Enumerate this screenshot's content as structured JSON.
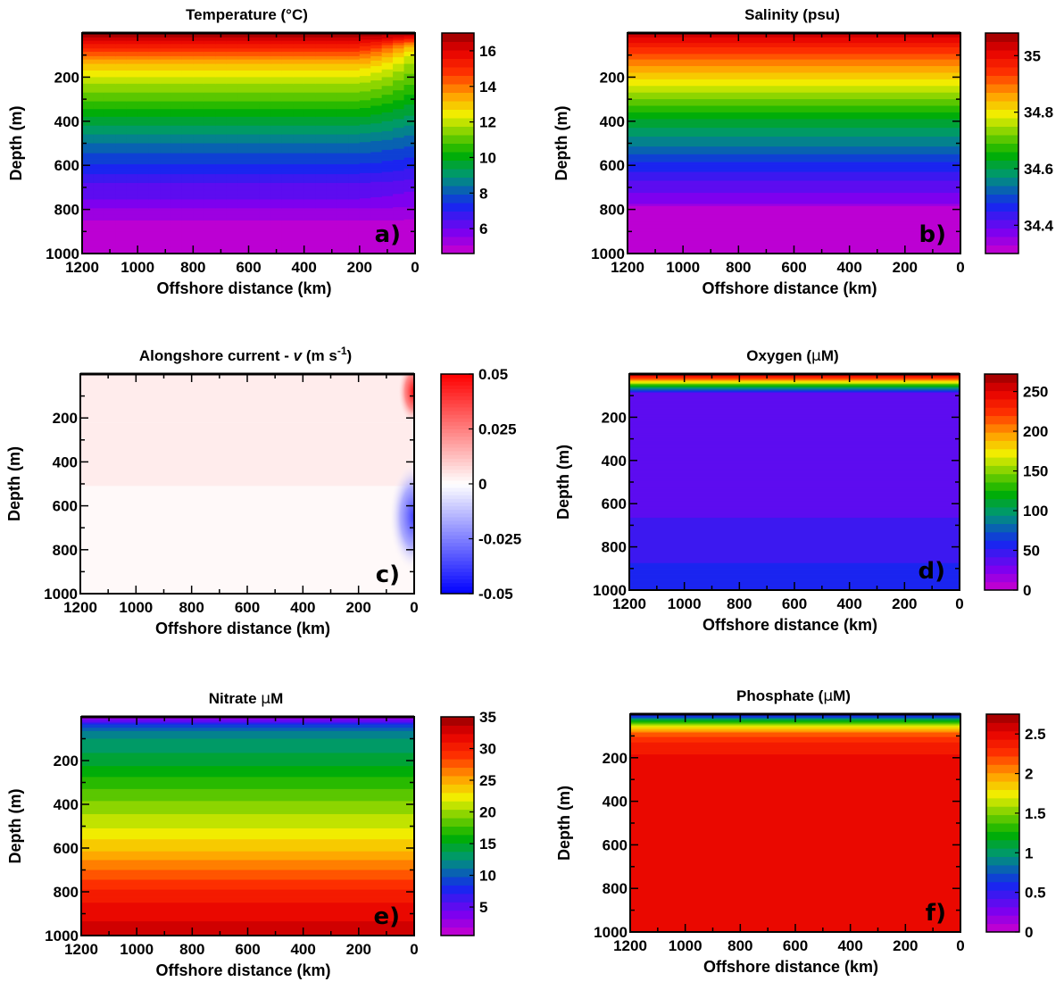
{
  "chart_data": [
    {
      "type": "heatmap",
      "panel_label": "a)",
      "title_parts": [
        "Temperature (",
        "°",
        "C)"
      ],
      "xlabel": "Offshore distance (km)",
      "ylabel": "Depth (m)",
      "xlim": [
        1200,
        0
      ],
      "ylim": [
        0,
        1000
      ],
      "x_ticks": [
        "1200",
        "1000",
        "800",
        "600",
        "400",
        "200",
        "0"
      ],
      "y_ticks": [
        "200",
        "400",
        "600",
        "800",
        "1000"
      ],
      "colorbar": {
        "min": 4.6,
        "max": 17.0,
        "ticks": [
          "6",
          "8",
          "10",
          "12",
          "14",
          "16"
        ],
        "tick_values": [
          6,
          8,
          10,
          12,
          14,
          16
        ]
      },
      "colormap": "rainbow",
      "profile": {
        "depth_m": [
          0,
          30,
          60,
          100,
          150,
          220,
          300,
          400,
          500,
          600,
          700,
          780,
          800,
          860,
          1000
        ],
        "value": [
          17.0,
          16.2,
          15.3,
          14.2,
          13.0,
          11.9,
          10.9,
          9.6,
          8.4,
          7.4,
          6.3,
          5.9,
          5.5,
          5.0,
          4.8
        ]
      },
      "coastal_profile": {
        "depth_m": [
          0,
          30,
          60,
          100,
          150,
          220,
          300,
          400,
          500,
          600,
          700,
          780,
          800,
          860,
          1000
        ],
        "value": [
          17.0,
          15.0,
          13.0,
          12.0,
          11.4,
          10.8,
          10.0,
          9.0,
          8.0,
          7.1,
          6.1,
          5.7,
          5.3,
          5.0,
          4.8
        ]
      }
    },
    {
      "type": "heatmap",
      "panel_label": "b)",
      "title_parts": [
        "Salinity (psu)"
      ],
      "xlabel": "Offshore distance (km)",
      "ylabel": "Depth (m)",
      "xlim": [
        1200,
        0
      ],
      "ylim": [
        0,
        1000
      ],
      "x_ticks": [
        "1200",
        "1000",
        "800",
        "600",
        "400",
        "200",
        "0"
      ],
      "y_ticks": [
        "200",
        "400",
        "600",
        "800",
        "1000"
      ],
      "colorbar": {
        "min": 34.3,
        "max": 35.08,
        "ticks": [
          "34.4",
          "34.6",
          "34.8",
          "35"
        ],
        "tick_values": [
          34.4,
          34.6,
          34.8,
          35.0
        ]
      },
      "colormap": "rainbow",
      "profile": {
        "depth_m": [
          0,
          50,
          120,
          200,
          300,
          400,
          500,
          600,
          700,
          770,
          790,
          1000
        ],
        "value": [
          35.05,
          34.98,
          34.9,
          34.82,
          34.72,
          34.62,
          34.55,
          34.47,
          34.4,
          34.37,
          34.32,
          34.31
        ]
      }
    },
    {
      "type": "heatmap",
      "panel_label": "c)",
      "title_parts": [
        "Alongshore current - ",
        "v",
        "  (m s",
        "-1",
        ")"
      ],
      "xlabel": "Offshore distance (km)",
      "ylabel": "Depth (m)",
      "xlim": [
        1200,
        0
      ],
      "ylim": [
        0,
        1000
      ],
      "x_ticks": [
        "1200",
        "1000",
        "800",
        "600",
        "400",
        "200",
        "0"
      ],
      "y_ticks": [
        "200",
        "400",
        "600",
        "800",
        "1000"
      ],
      "colorbar": {
        "min": -0.05,
        "max": 0.05,
        "ticks": [
          "-0.05",
          "-0.025",
          "0",
          "0.025",
          "0.05"
        ],
        "tick_values": [
          -0.05,
          -0.025,
          0,
          0.025,
          0.05
        ]
      },
      "colormap": "blue-white-red",
      "background_bands": [
        {
          "depth_from": 0,
          "depth_to": 220,
          "value": 0.005
        },
        {
          "depth_from": 220,
          "depth_to": 510,
          "value": 0.004
        },
        {
          "depth_from": 510,
          "depth_to": 1000,
          "value": 0.0
        }
      ],
      "coastal_features": [
        {
          "x_km": 0,
          "depth_m": 80,
          "value": 0.05,
          "width_km": 60,
          "height_m": 300
        },
        {
          "x_km": 0,
          "depth_m": 650,
          "value": -0.04,
          "width_km": 90,
          "height_m": 500
        }
      ]
    },
    {
      "type": "heatmap",
      "panel_label": "d)",
      "title_parts": [
        "Oxygen (",
        "μ",
        "M)"
      ],
      "xlabel": "Offshore distance (km)",
      "ylabel": "Depth (m)",
      "xlim": [
        1200,
        0
      ],
      "ylim": [
        0,
        1000
      ],
      "x_ticks": [
        "1200",
        "1000",
        "800",
        "600",
        "400",
        "200",
        "0"
      ],
      "y_ticks": [
        "200",
        "400",
        "600",
        "800",
        "1000"
      ],
      "colorbar": {
        "min": 0,
        "max": 272,
        "ticks": [
          "0",
          "50",
          "100",
          "150",
          "200",
          "250"
        ],
        "tick_values": [
          0,
          50,
          100,
          150,
          200,
          250
        ]
      },
      "colormap": "rainbow",
      "profile": {
        "depth_m": [
          0,
          15,
          30,
          45,
          60,
          75,
          90,
          660,
          670,
          870,
          880,
          1000
        ],
        "value": [
          265,
          235,
          195,
          150,
          110,
          75,
          35,
          35,
          45,
          45,
          55,
          55
        ]
      }
    },
    {
      "type": "heatmap",
      "panel_label": "e)",
      "title_parts": [
        "Nitrate ",
        "μ",
        "M"
      ],
      "xlabel": "Offshore distance (km)",
      "ylabel": "Depth (m)",
      "xlim": [
        1200,
        0
      ],
      "ylim": [
        0,
        1000
      ],
      "x_ticks": [
        "1200",
        "1000",
        "800",
        "600",
        "400",
        "200",
        "0"
      ],
      "y_ticks": [
        "200",
        "400",
        "600",
        "800",
        "1000"
      ],
      "colorbar": {
        "min": 0.5,
        "max": 35,
        "ticks": [
          "5",
          "10",
          "15",
          "20",
          "25",
          "30",
          "35"
        ],
        "tick_values": [
          5,
          10,
          15,
          20,
          25,
          30,
          35
        ]
      },
      "colormap": "rainbow",
      "profile": {
        "depth_m": [
          0,
          10,
          20,
          30,
          40,
          60,
          100,
          150,
          200,
          300,
          400,
          500,
          600,
          700,
          800,
          900,
          1000
        ],
        "value": [
          1,
          3,
          5,
          7,
          9,
          11,
          12.5,
          13.5,
          14.5,
          17,
          19.5,
          21.5,
          24,
          27,
          30,
          32,
          33
        ]
      }
    },
    {
      "type": "heatmap",
      "panel_label": "f)",
      "title_parts": [
        "Phosphate (",
        "μ",
        "M)"
      ],
      "xlabel": "Offshore distance (km)",
      "ylabel": "Depth (m)",
      "xlim": [
        1200,
        0
      ],
      "ylim": [
        0,
        1000
      ],
      "x_ticks": [
        "1200",
        "1000",
        "800",
        "600",
        "400",
        "200",
        "0"
      ],
      "y_ticks": [
        "200",
        "400",
        "600",
        "800",
        "1000"
      ],
      "colorbar": {
        "min": 0,
        "max": 2.75,
        "ticks": [
          "0",
          "0.5",
          "1",
          "1.5",
          "2",
          "2.5"
        ],
        "tick_values": [
          0,
          0.5,
          1,
          1.5,
          2,
          2.5
        ]
      },
      "colormap": "rainbow",
      "profile": {
        "depth_m": [
          0,
          20,
          40,
          60,
          90,
          120,
          160,
          200,
          1000
        ],
        "value": [
          0.4,
          0.9,
          1.4,
          1.8,
          2.15,
          2.3,
          2.4,
          2.45,
          2.45
        ]
      }
    }
  ]
}
